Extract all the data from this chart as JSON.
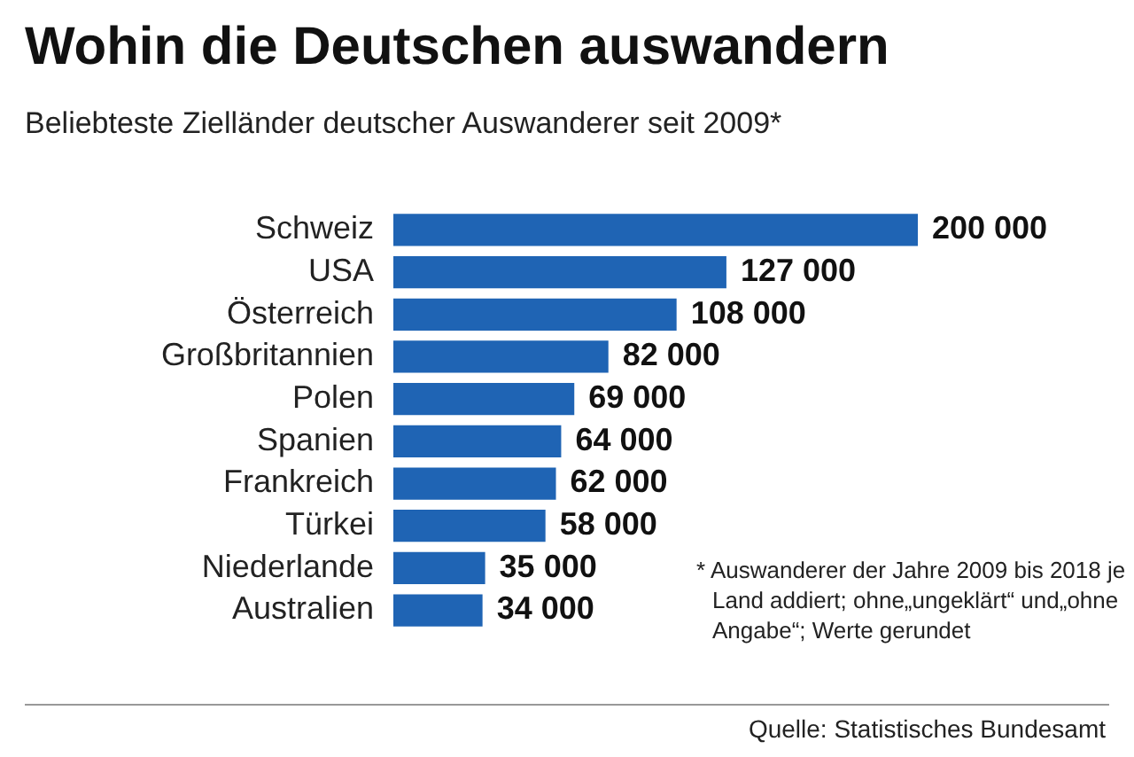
{
  "chart_data": {
    "type": "bar",
    "orientation": "horizontal",
    "title": "Wohin die Deutschen auswandern",
    "subtitle": "Beliebteste Zielländer deutscher Auswanderer seit 2009*",
    "categories": [
      "Schweiz",
      "USA",
      "Österreich",
      "Großbritannien",
      "Polen",
      "Spanien",
      "Frankreich",
      "Türkei",
      "Niederlande",
      "Australien"
    ],
    "values": [
      200000,
      127000,
      108000,
      82000,
      69000,
      64000,
      62000,
      58000,
      35000,
      34000
    ],
    "value_labels": [
      "200 000",
      "127 000",
      "108 000",
      "82 000",
      "69 000",
      "64 000",
      "62 000",
      "58 000",
      "35 000",
      "34 000"
    ],
    "color": "#1f64b4",
    "annotations": [
      "* Auswanderer der Jahre 2009 bis 2018 je Land addiert; ohne„ungeklärt“ und„ohne Angabe“; Werte gerundet",
      "Quelle: Statistisches Bundesamt"
    ]
  }
}
